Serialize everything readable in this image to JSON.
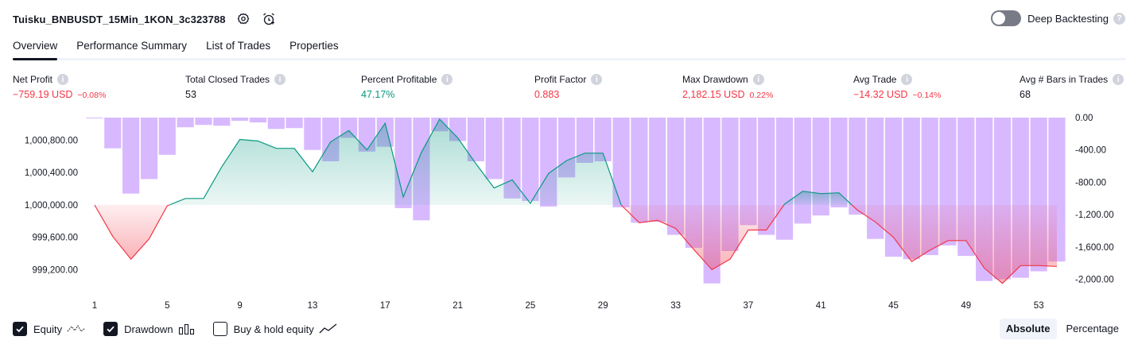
{
  "header": {
    "title": "Tuisku_BNBUSDT_15Min_1KON_3c323788",
    "deep_backtesting_label": "Deep Backtesting",
    "deep_backtesting_on": false
  },
  "tabs": [
    {
      "label": "Overview",
      "active": true
    },
    {
      "label": "Performance Summary",
      "active": false
    },
    {
      "label": "List of Trades",
      "active": false
    },
    {
      "label": "Properties",
      "active": false
    }
  ],
  "metrics": [
    {
      "label": "Net Profit",
      "value": "−759.19 USD",
      "pct": "−0.08%",
      "color": "red"
    },
    {
      "label": "Total Closed Trades",
      "value": "53",
      "pct": "",
      "color": "dark"
    },
    {
      "label": "Percent Profitable",
      "value": "47.17%",
      "pct": "",
      "color": "green"
    },
    {
      "label": "Profit Factor",
      "value": "0.883",
      "pct": "",
      "color": "red"
    },
    {
      "label": "Max Drawdown",
      "value": "2,182.15 USD",
      "pct": "0.22%",
      "color": "red"
    },
    {
      "label": "Avg Trade",
      "value": "−14.32 USD",
      "pct": "−0.14%",
      "color": "red"
    },
    {
      "label": "Avg # Bars in Trades",
      "value": "68",
      "pct": "",
      "color": "dark"
    }
  ],
  "legend": {
    "equity_label": "Equity",
    "equity_checked": true,
    "drawdown_label": "Drawdown",
    "drawdown_checked": true,
    "buyhold_label": "Buy & hold equity",
    "buyhold_checked": false
  },
  "mode": {
    "absolute_label": "Absolute",
    "percentage_label": "Percentage",
    "selected": "Absolute"
  },
  "colors": {
    "equity_up": "#089981",
    "equity_down": "#f23645",
    "drawdown": "#d1adff",
    "baseline": "#e0e3eb"
  },
  "chart_data": {
    "type": "area",
    "x_tick_labels": [
      "1",
      "5",
      "9",
      "13",
      "17",
      "21",
      "25",
      "29",
      "33",
      "37",
      "41",
      "45",
      "49",
      "53"
    ],
    "left_axis": {
      "ticks": [
        "1,000,800.00",
        "1,000,400.00",
        "1,000,000.00",
        "999,600.00",
        "999,200.00"
      ],
      "tick_values": [
        1000800,
        1000400,
        1000000,
        999600,
        999200
      ],
      "ylim": [
        998880,
        1001080
      ],
      "baseline": 1000000
    },
    "right_axis": {
      "ticks": [
        "0.00",
        "-400.00",
        "-800.00",
        "-1,200.00",
        "-1,600.00",
        "-2,000.00"
      ],
      "tick_values": [
        0,
        -400,
        -800,
        -1200,
        -1600,
        -2000
      ],
      "ylim": [
        -2200,
        0
      ]
    },
    "x": [
      1,
      2,
      3,
      4,
      5,
      6,
      7,
      8,
      9,
      10,
      11,
      12,
      13,
      14,
      15,
      16,
      17,
      18,
      19,
      20,
      21,
      22,
      23,
      24,
      25,
      26,
      27,
      28,
      29,
      30,
      31,
      32,
      33,
      34,
      35,
      36,
      37,
      38,
      39,
      40,
      41,
      42,
      43,
      44,
      45,
      46,
      47,
      48,
      49,
      50,
      51,
      52,
      53,
      54
    ],
    "series": [
      {
        "name": "Equity",
        "values": [
          1000000,
          999610,
          999330,
          999580,
          999990,
          1000080,
          1000080,
          1000470,
          1000810,
          1000790,
          1000700,
          1000700,
          1000410,
          1000780,
          1000920,
          1000680,
          1001010,
          1000100,
          1000650,
          1001060,
          1000830,
          1000510,
          1000210,
          1000310,
          1000020,
          1000390,
          1000550,
          1000640,
          1000640,
          1000000,
          999780,
          999810,
          999710,
          999450,
          999200,
          999330,
          999690,
          999690,
          1000010,
          1000170,
          1000140,
          1000150,
          999940,
          999790,
          999600,
          999300,
          999440,
          999560,
          999560,
          999220,
          999030,
          999250,
          999250,
          999240
        ]
      },
      {
        "name": "Drawdown",
        "values": [
          -10,
          -380,
          -940,
          -760,
          -460,
          -120,
          -90,
          -100,
          -40,
          -60,
          -140,
          -130,
          -400,
          -540,
          -250,
          -420,
          -360,
          -1120,
          -1270,
          -170,
          -290,
          -540,
          -760,
          -1000,
          -1030,
          -1100,
          -740,
          -560,
          -540,
          -1110,
          -1300,
          -1290,
          -1450,
          -1610,
          -2050,
          -1650,
          -1330,
          -1450,
          -1510,
          -1310,
          -1210,
          -1110,
          -1200,
          -1500,
          -1720,
          -1750,
          -1700,
          -1580,
          -1710,
          -2020,
          -2000,
          -1980,
          -1900,
          -1780
        ]
      }
    ]
  }
}
